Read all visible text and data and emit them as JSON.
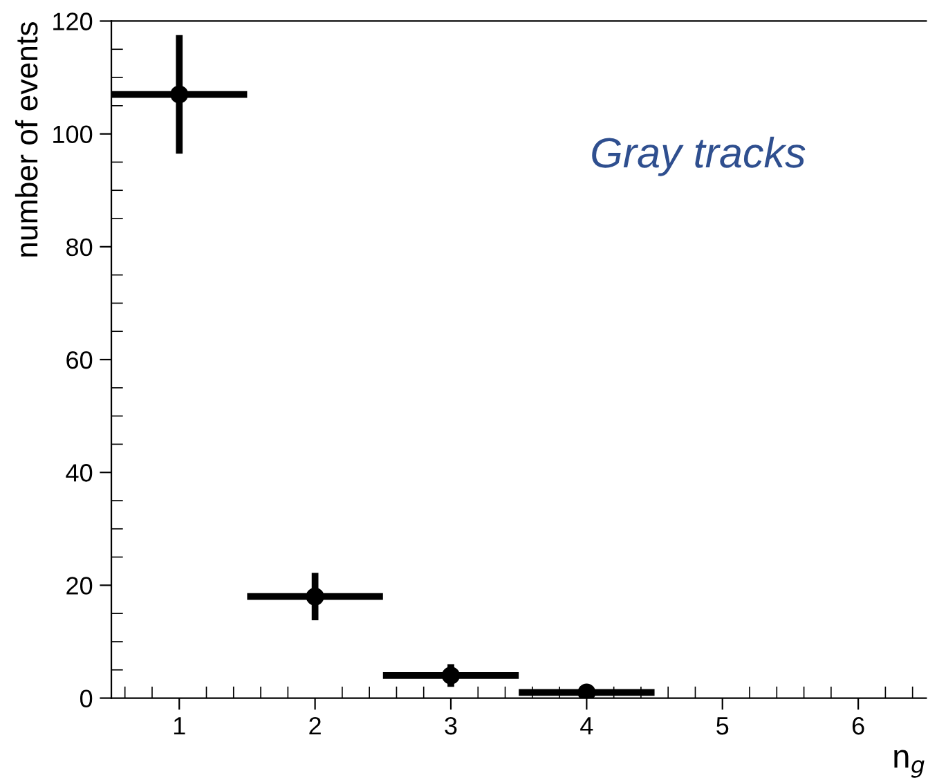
{
  "chart_data": {
    "type": "scatter",
    "x": [
      1,
      2,
      3,
      4
    ],
    "series": [
      {
        "color": "#000000",
        "values": [
          107,
          18,
          4,
          1
        ],
        "errors": [
          10.5,
          4.2,
          2,
          1
        ],
        "xerrors": [
          0.5,
          0.5,
          0.5,
          0.5
        ]
      }
    ],
    "xlabel": "n$_{g}$",
    "ylabel": "number of events",
    "annotations": [
      "Gray tracks"
    ],
    "xlim": [
      0.5,
      6.5
    ],
    "ylim": [
      0,
      120
    ],
    "xticks": [
      1,
      2,
      3,
      4,
      5,
      6
    ],
    "yticks": [
      0,
      20,
      40,
      60,
      80,
      100,
      120
    ],
    "marker": "circle",
    "grid": false,
    "legend": false
  }
}
